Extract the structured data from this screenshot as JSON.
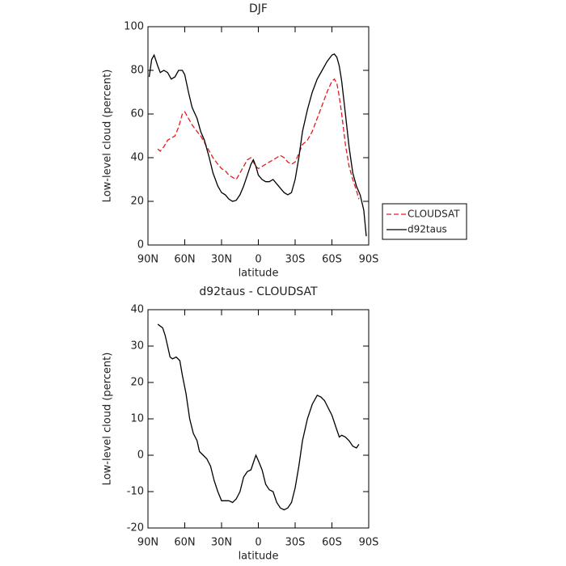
{
  "chart_data": [
    {
      "type": "line",
      "title": "DJF",
      "xlabel": "latitude",
      "ylabel": "Low-level cloud (percent)",
      "xlim": [
        90,
        -90
      ],
      "ylim": [
        0,
        100
      ],
      "xticks": [
        {
          "value": 90,
          "label": "90N"
        },
        {
          "value": 60,
          "label": "60N"
        },
        {
          "value": 30,
          "label": "30N"
        },
        0,
        {
          "value": -30,
          "label": "30S"
        },
        {
          "value": -60,
          "label": "60S"
        },
        {
          "value": -90,
          "label": "90S"
        }
      ],
      "yticks": [
        0,
        20,
        40,
        60,
        80,
        100
      ],
      "legend": "outside right",
      "series": [
        {
          "name": "CLOUDSAT",
          "color": "#e41a1c",
          "linestyle": "dashed",
          "x": [
            82,
            80,
            77,
            74,
            71,
            68,
            65,
            62,
            60,
            57,
            54,
            50,
            47,
            44,
            40,
            37,
            33,
            30,
            27,
            24,
            21,
            18,
            15,
            12,
            9,
            6,
            4,
            2,
            0,
            -3,
            -6,
            -9,
            -12,
            -15,
            -18,
            -21,
            -24,
            -27,
            -30,
            -33,
            -36,
            -40,
            -44,
            -48,
            -52,
            -56,
            -60,
            -62,
            -64,
            -66,
            -68,
            -71,
            -74,
            -77,
            -80,
            -82
          ],
          "values": [
            44,
            43,
            45,
            48,
            49,
            50,
            54,
            60,
            61,
            58,
            55,
            52,
            50,
            47,
            43,
            40,
            37,
            35,
            34,
            32,
            31,
            30,
            33,
            36,
            39,
            40,
            38,
            36,
            35,
            36,
            37,
            38,
            39,
            40,
            41,
            40,
            38,
            37,
            38,
            42,
            46,
            48,
            52,
            58,
            64,
            70,
            75,
            76,
            74,
            68,
            60,
            46,
            36,
            30,
            25,
            21
          ]
        },
        {
          "name": "d92taus",
          "color": "#000000",
          "linestyle": "solid",
          "x": [
            89,
            87,
            85,
            82,
            80,
            77,
            74,
            71,
            68,
            65,
            62,
            60,
            57,
            54,
            50,
            47,
            44,
            40,
            37,
            33,
            30,
            27,
            24,
            21,
            18,
            15,
            12,
            9,
            6,
            4,
            2,
            0,
            -3,
            -6,
            -9,
            -12,
            -15,
            -18,
            -21,
            -24,
            -27,
            -30,
            -33,
            -36,
            -40,
            -44,
            -48,
            -52,
            -56,
            -60,
            -62,
            -64,
            -66,
            -68,
            -71,
            -74,
            -77,
            -80,
            -83,
            -86,
            -88
          ],
          "values": [
            77,
            85,
            87,
            82,
            79,
            80,
            79,
            76,
            77,
            80,
            80,
            78,
            70,
            63,
            58,
            52,
            48,
            40,
            33,
            27,
            24,
            23,
            21,
            20,
            20.5,
            23,
            27,
            32,
            37,
            39,
            36,
            32,
            30,
            29,
            29,
            30,
            28,
            26,
            24,
            23,
            24,
            30,
            40,
            52,
            62,
            70,
            76,
            80,
            84,
            87,
            87.5,
            86,
            82,
            75,
            60,
            45,
            33,
            27,
            23,
            16,
            4
          ]
        }
      ]
    },
    {
      "type": "line",
      "title": "d92taus - CLOUDSAT",
      "xlabel": "latitude",
      "ylabel": "Low-level cloud (percent)",
      "xlim": [
        90,
        -90
      ],
      "ylim": [
        -20,
        40
      ],
      "xticks": [
        {
          "value": 90,
          "label": "90N"
        },
        {
          "value": 60,
          "label": "60N"
        },
        {
          "value": 30,
          "label": "30N"
        },
        0,
        {
          "value": -30,
          "label": "30S"
        },
        {
          "value": -60,
          "label": "60S"
        },
        {
          "value": -90,
          "label": "90S"
        }
      ],
      "yticks": [
        -20,
        -10,
        0,
        10,
        20,
        30,
        40
      ],
      "color": "#000000",
      "x": [
        82,
        80,
        78,
        76,
        74,
        72,
        70,
        67,
        64,
        62,
        59,
        56,
        53,
        50,
        48,
        45,
        42,
        39,
        36,
        33,
        30,
        27,
        24,
        21,
        18,
        15,
        12,
        9,
        6,
        4,
        2,
        0,
        -3,
        -6,
        -9,
        -12,
        -15,
        -18,
        -21,
        -24,
        -27,
        -30,
        -33,
        -36,
        -40,
        -44,
        -48,
        -51,
        -54,
        -57,
        -60,
        -63,
        -66,
        -68,
        -71,
        -74,
        -77,
        -80,
        -82
      ],
      "values": [
        36,
        35.5,
        35,
        33,
        30,
        27,
        26.5,
        27,
        26,
        22,
        17,
        10,
        6,
        4,
        1,
        0,
        -1,
        -3,
        -7,
        -10,
        -12.5,
        -12.5,
        -12.5,
        -13,
        -12,
        -10,
        -6,
        -4.5,
        -4,
        -2,
        0,
        -1.5,
        -4,
        -8,
        -9.5,
        -10,
        -13,
        -14.5,
        -15,
        -14.5,
        -13,
        -9,
        -3,
        4,
        10,
        14,
        16.5,
        16,
        15,
        13,
        11,
        8,
        5,
        5.5,
        5,
        4,
        2.5,
        2,
        3
      ]
    }
  ]
}
